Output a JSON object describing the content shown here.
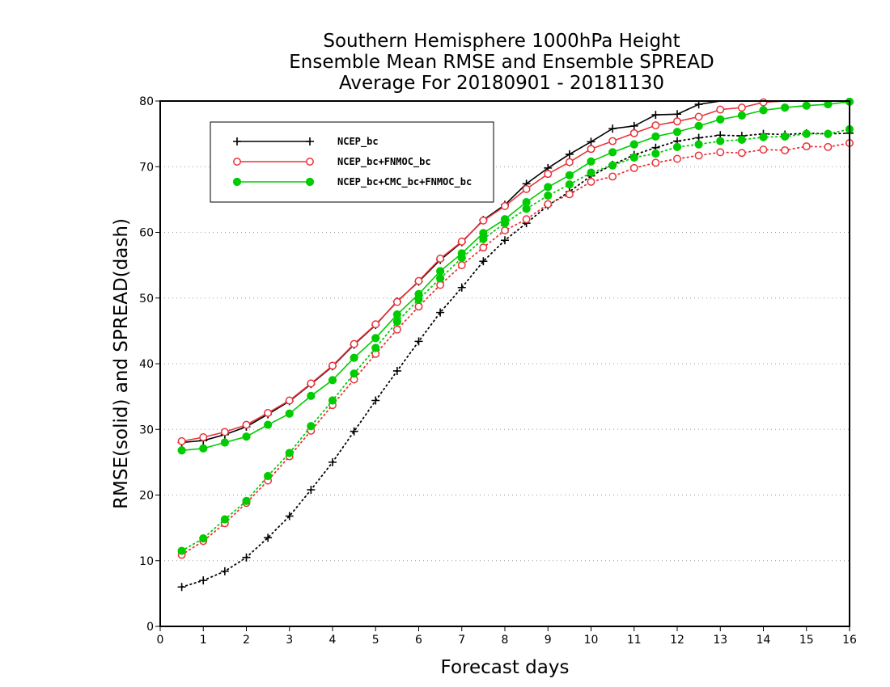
{
  "chart_data": {
    "type": "line",
    "title": [
      "Southern Hemisphere 1000hPa Height",
      "Ensemble Mean RMSE and Ensemble SPREAD",
      "Average For 20180901 - 20181130"
    ],
    "xlabel": "Forecast days",
    "ylabel": "RMSE(solid) and SPREAD(dash)",
    "xlim": [
      0,
      16
    ],
    "ylim": [
      0,
      80
    ],
    "xticks": [
      "0",
      "1",
      "2",
      "3",
      "4",
      "5",
      "6",
      "7",
      "8",
      "9",
      "10",
      "11",
      "12",
      "13",
      "14",
      "15",
      "16"
    ],
    "yticks": [
      "0",
      "10",
      "20",
      "30",
      "40",
      "50",
      "60",
      "70",
      "80"
    ],
    "grid": "horizontal dotted",
    "legend_position": "top-left",
    "colors": {
      "ncep": "#000000",
      "fnmoc": "#e8333a",
      "cmc": "#00cc00"
    },
    "x": [
      0.5,
      1,
      1.5,
      2,
      2.5,
      3,
      3.5,
      4,
      4.5,
      5,
      5.5,
      6,
      6.5,
      7,
      7.5,
      8,
      8.5,
      9,
      9.5,
      10,
      10.5,
      11,
      11.5,
      12,
      12.5,
      13,
      13.5,
      14,
      14.5,
      15,
      15.5,
      16
    ],
    "series": [
      {
        "name": "NCEP_bc",
        "key": "ncep",
        "marker": "plus",
        "rmse": [
          28.0,
          28.3,
          29.2,
          30.4,
          32.3,
          34.3,
          36.9,
          39.6,
          42.9,
          45.9,
          49.5,
          52.5,
          55.8,
          58.5,
          61.9,
          64.2,
          67.4,
          69.8,
          71.9,
          73.8,
          75.8,
          76.2,
          77.9,
          78.0,
          79.5,
          80.3,
          80.6,
          80.9,
          81.2,
          81.4,
          81.5,
          81.6
        ],
        "spread": [
          6.0,
          7.0,
          8.4,
          10.5,
          13.5,
          16.8,
          20.8,
          25.0,
          29.7,
          34.4,
          38.9,
          43.4,
          47.8,
          51.6,
          55.6,
          58.8,
          61.4,
          64.1,
          66.2,
          68.6,
          70.3,
          71.8,
          72.9,
          73.9,
          74.4,
          74.8,
          74.7,
          75.0,
          74.9,
          75.1,
          75.0,
          75.1
        ]
      },
      {
        "name": "NCEP_bc+FNMOC_bc",
        "key": "fnmoc",
        "marker": "circle",
        "rmse": [
          28.2,
          28.8,
          29.6,
          30.7,
          32.5,
          34.4,
          37.0,
          39.7,
          43.0,
          46.0,
          49.4,
          52.6,
          56.0,
          58.6,
          61.8,
          64.0,
          66.6,
          68.9,
          70.7,
          72.7,
          73.9,
          75.1,
          76.3,
          76.9,
          77.6,
          78.7,
          79.0,
          79.8,
          80.1,
          80.3,
          80.4,
          80.5
        ],
        "spread": [
          10.9,
          13.0,
          15.7,
          18.8,
          22.2,
          25.9,
          29.8,
          33.7,
          37.6,
          41.5,
          45.2,
          48.7,
          52.0,
          55.0,
          57.7,
          60.3,
          62.0,
          64.3,
          65.8,
          67.7,
          68.5,
          69.8,
          70.6,
          71.2,
          71.7,
          72.2,
          72.1,
          72.6,
          72.5,
          73.1,
          73.0,
          73.6
        ]
      },
      {
        "name": "NCEP_bc+CMC_bc+FNMOC_bc",
        "key": "cmc",
        "marker": "dot",
        "rmse": [
          26.8,
          27.1,
          28.0,
          28.9,
          30.7,
          32.4,
          35.1,
          37.5,
          40.9,
          43.9,
          47.5,
          50.6,
          54.1,
          56.8,
          59.9,
          62.0,
          64.6,
          66.9,
          68.7,
          70.8,
          72.2,
          73.4,
          74.6,
          75.3,
          76.2,
          77.2,
          77.8,
          78.6,
          79.0,
          79.3,
          79.5,
          79.9
        ],
        "spread": [
          11.5,
          13.4,
          16.3,
          19.1,
          22.9,
          26.4,
          30.5,
          34.4,
          38.5,
          42.4,
          46.4,
          49.8,
          53.0,
          56.1,
          59.0,
          61.4,
          63.6,
          65.6,
          67.3,
          69.1,
          70.2,
          71.4,
          72.0,
          73.0,
          73.4,
          73.9,
          74.1,
          74.5,
          74.6,
          75.0,
          75.0,
          75.7
        ]
      }
    ]
  }
}
